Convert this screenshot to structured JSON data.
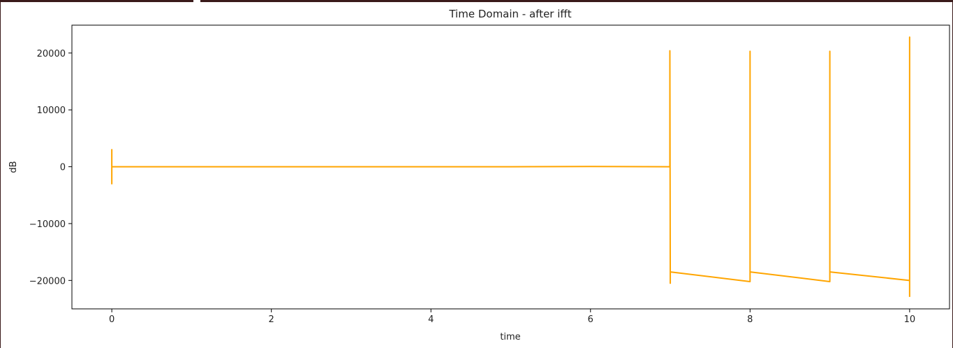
{
  "chart_data": {
    "type": "line",
    "title": "Time Domain - after ifft",
    "xlabel": "time",
    "ylabel": "dB",
    "xlim": [
      -0.5,
      10.5
    ],
    "ylim": [
      -25000,
      24900
    ],
    "x_ticks": [
      0,
      2,
      4,
      6,
      8,
      10
    ],
    "x_tick_labels": [
      "0",
      "2",
      "4",
      "6",
      "8",
      "10"
    ],
    "y_ticks": [
      -20000,
      -10000,
      0,
      10000,
      20000
    ],
    "y_tick_labels": [
      "−20000",
      "−10000",
      "0",
      "10000",
      "20000"
    ],
    "grid": false,
    "series": [
      {
        "color": "#FFA500",
        "x": [
          0.0,
          0.0,
          0.0,
          0.0,
          0.01,
          1.0,
          2.0,
          5.0,
          6.0,
          6.99,
          6.995,
          6.995,
          7.0,
          7.0,
          7.0,
          7.0,
          8.0,
          8.0,
          8.0,
          8.0,
          8.0,
          9.0,
          9.0,
          9.0,
          9.0,
          9.0,
          10.0,
          10.0,
          10.0,
          10.0
        ],
        "y": [
          0,
          3000,
          -3000,
          0,
          0,
          0,
          0,
          0,
          50,
          0,
          0,
          20400,
          -20500,
          -18500,
          -18500,
          -18500,
          -20200,
          -20200,
          20300,
          -18500,
          -18500,
          -20200,
          -20200,
          20300,
          -18500,
          -18500,
          -20000,
          -20000,
          22800,
          -22900
        ],
        "values": [
          0,
          3000,
          -3000,
          0,
          0,
          0,
          0,
          0,
          50,
          0,
          0,
          20400,
          -20500,
          -18500,
          -18500,
          -18500,
          -20200,
          -20200,
          20300,
          -18500,
          -18500,
          -20200,
          -20200,
          20300,
          -18500,
          -18500,
          -20000,
          -20000,
          22800,
          -22900
        ]
      }
    ]
  }
}
